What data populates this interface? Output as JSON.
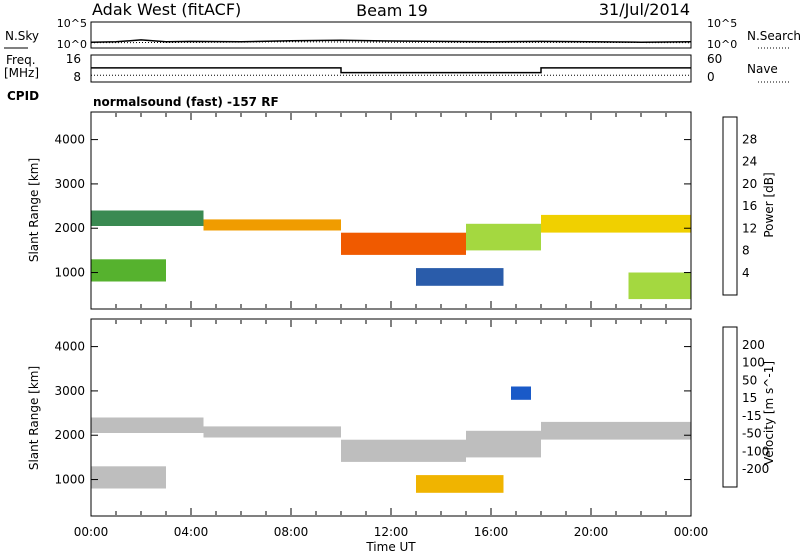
{
  "header": {
    "station": "Adak West (fitACF)",
    "beam": "Beam 19",
    "date": "31/Jul/2014"
  },
  "colors": {
    "power_scale": [
      "#0000ff",
      "#2a5caa",
      "#3a8a52",
      "#56b22e",
      "#a4d840",
      "#f0d000",
      "#f09c00",
      "#f05a00",
      "#e00000"
    ],
    "velocity_scale": [
      "#0000ff",
      "#1a5ac8",
      "#2a9a2a",
      "#8cd43c",
      "#bebebe",
      "#bebebe",
      "#f0b400",
      "#f08000",
      "#e84400",
      "#e00000"
    ],
    "line": "#000000"
  },
  "chart_data": [
    {
      "type": "line",
      "name": "noise-panel",
      "left_labels": [
        "N.Sky"
      ],
      "right_labels": [
        "N.Search"
      ],
      "left_ticks": [
        "10^5",
        "10^0"
      ],
      "right_ticks": [
        "10^5",
        "10^0"
      ],
      "y_scale": "log",
      "ylim": [
        1,
        100000
      ],
      "series": [
        {
          "name": "N.Sky",
          "style": "solid",
          "points": [
            [
              0,
              10
            ],
            [
              1,
              12
            ],
            [
              2,
              30
            ],
            [
              3,
              12
            ],
            [
              4,
              15
            ],
            [
              6,
              12
            ],
            [
              8,
              20
            ],
            [
              10,
              25
            ],
            [
              12,
              18
            ],
            [
              14,
              15
            ],
            [
              16,
              12
            ],
            [
              18,
              15
            ],
            [
              20,
              12
            ],
            [
              22,
              10
            ],
            [
              24,
              12
            ]
          ]
        },
        {
          "name": "N.Search",
          "style": "dotted",
          "points": [
            [
              0,
              8
            ],
            [
              4,
              9
            ],
            [
              8,
              12
            ],
            [
              12,
              10
            ],
            [
              16,
              9
            ],
            [
              20,
              9
            ],
            [
              24,
              8
            ]
          ]
        }
      ]
    },
    {
      "type": "line",
      "name": "freq-nave-panel",
      "left_labels": [
        "Freq.",
        "[MHz]"
      ],
      "right_labels": [
        "Nave"
      ],
      "left_ticks": [
        "16",
        "8"
      ],
      "right_ticks": [
        "60",
        "0"
      ],
      "freq_ylim": [
        8,
        16
      ],
      "nave_ylim": [
        0,
        60
      ],
      "series": [
        {
          "name": "Freq.",
          "style": "solid",
          "points": [
            [
              0,
              12.2
            ],
            [
              10,
              12.2
            ],
            [
              10,
              10.7
            ],
            [
              18,
              10.7
            ],
            [
              18,
              12.2
            ],
            [
              24,
              12.2
            ]
          ]
        },
        {
          "name": "Nave",
          "style": "dotted",
          "points": [
            [
              0,
              14
            ],
            [
              24,
              14
            ]
          ]
        }
      ]
    },
    {
      "type": "table",
      "name": "cpid-panel",
      "label": "CPID",
      "text": "normalsound (fast) -157 RF"
    },
    {
      "type": "heatmap",
      "name": "power-panel",
      "ylabel": "Slant Range [km]",
      "yticks": [
        1000,
        2000,
        3000,
        4000
      ],
      "ylim": [
        200,
        4600
      ],
      "xlim": [
        0,
        24
      ],
      "colorbar": {
        "label": "Power [dB]",
        "ticks": [
          "28",
          "24",
          "20",
          "16",
          "12",
          "8",
          "4"
        ],
        "range": [
          0,
          30
        ]
      },
      "bands": [
        {
          "x": [
            0,
            4.5
          ],
          "y": [
            2050,
            2400
          ],
          "value": 8
        },
        {
          "x": [
            4.5,
            10
          ],
          "y": [
            1950,
            2200
          ],
          "value": 22
        },
        {
          "x": [
            10,
            15
          ],
          "y": [
            1400,
            1900
          ],
          "value": 24
        },
        {
          "x": [
            15,
            18
          ],
          "y": [
            1500,
            2100
          ],
          "value": 14
        },
        {
          "x": [
            18,
            24
          ],
          "y": [
            1900,
            2300
          ],
          "value": 18
        },
        {
          "x": [
            0,
            3
          ],
          "y": [
            800,
            1300
          ],
          "value": 10
        },
        {
          "x": [
            13,
            16.5
          ],
          "y": [
            700,
            1100
          ],
          "value": 6
        },
        {
          "x": [
            21.5,
            24
          ],
          "y": [
            400,
            1000
          ],
          "value": 16
        }
      ]
    },
    {
      "type": "heatmap",
      "name": "velocity-panel",
      "ylabel": "Slant Range [km]",
      "yticks": [
        1000,
        2000,
        3000,
        4000
      ],
      "ylim": [
        200,
        4600
      ],
      "xlim": [
        0,
        24
      ],
      "xticks": [
        "00:00",
        "04:00",
        "08:00",
        "12:00",
        "16:00",
        "20:00",
        "00:00"
      ],
      "xlabel": "Time UT",
      "colorbar": {
        "label": "Velocity [m s^-1]",
        "ticks": [
          "200",
          "100",
          "50",
          "15",
          "-15",
          "-50",
          "-100",
          "-200"
        ],
        "range": [
          -250,
          250
        ]
      },
      "bands": [
        {
          "x": [
            0,
            4.5
          ],
          "y": [
            2050,
            2400
          ],
          "value": 0
        },
        {
          "x": [
            4.5,
            10
          ],
          "y": [
            1950,
            2200
          ],
          "value": 0
        },
        {
          "x": [
            10,
            15
          ],
          "y": [
            1400,
            1900
          ],
          "value": -30
        },
        {
          "x": [
            15,
            18
          ],
          "y": [
            1500,
            2100
          ],
          "value": 0
        },
        {
          "x": [
            18,
            24
          ],
          "y": [
            1900,
            2300
          ],
          "value": 0
        },
        {
          "x": [
            0,
            3
          ],
          "y": [
            800,
            1300
          ],
          "value": 0
        },
        {
          "x": [
            13,
            16.5
          ],
          "y": [
            700,
            1100
          ],
          "value": -60
        },
        {
          "x": [
            16.8,
            17.6
          ],
          "y": [
            2800,
            3100
          ],
          "value": 200
        }
      ]
    }
  ]
}
